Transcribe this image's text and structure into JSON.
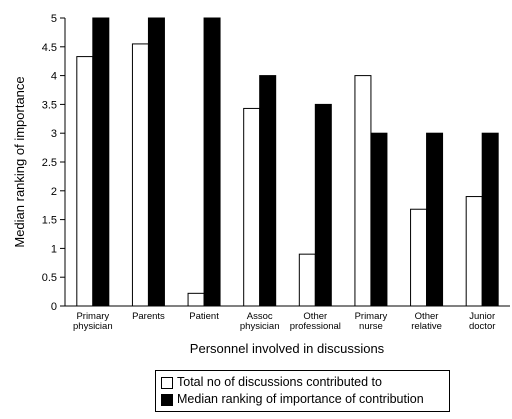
{
  "chart_data": {
    "type": "bar",
    "xlabel": "Personnel involved in discussions",
    "ylabel": "Median ranking of importance",
    "ylim": [
      0,
      5
    ],
    "yticks": [
      "0",
      "0.5",
      "1",
      "1.5",
      "2",
      "2.5",
      "3",
      "3.5",
      "4",
      "4.5",
      "5"
    ],
    "categories": [
      [
        "Primary",
        "physician"
      ],
      [
        "Parents"
      ],
      [
        "Patient"
      ],
      [
        "Assoc",
        "physician"
      ],
      [
        "Other",
        "professional"
      ],
      [
        "Primary",
        "nurse"
      ],
      [
        "Other",
        "relative"
      ],
      [
        "Junior",
        "doctor"
      ]
    ],
    "series": [
      {
        "name": "Total no of discussions contributed to",
        "color": "#ffffff",
        "values": [
          4.33,
          4.55,
          0.22,
          3.43,
          0.9,
          4.0,
          1.68,
          1.9
        ]
      },
      {
        "name": "Median ranking of importance of contribution",
        "color": "#000000",
        "values": [
          5,
          5,
          5,
          4,
          3.5,
          3,
          3,
          3
        ]
      }
    ],
    "grid": false,
    "legend_position": "bottom-center"
  }
}
